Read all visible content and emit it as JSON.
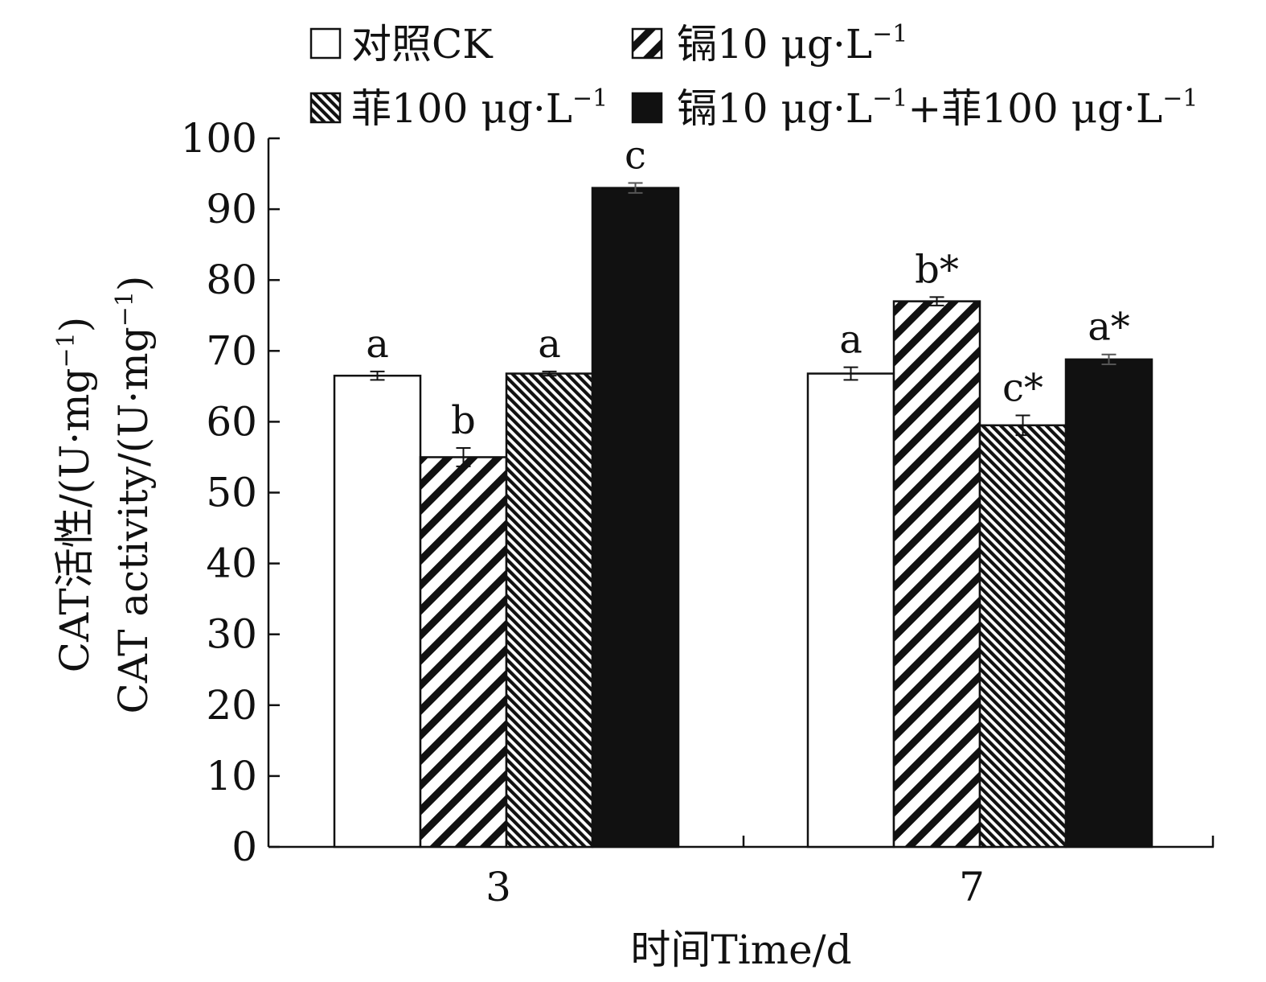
{
  "chart_data": {
    "type": "bar",
    "xlabel": "时间Time/d",
    "ylabel_cn": "CAT活性/(U·mg",
    "ylabel_en": "CAT activity/(U·mg",
    "ylabel_sup": "−1",
    "ylabel_close": ")",
    "ylim": [
      0,
      100
    ],
    "yticks": [
      "0",
      "10",
      "20",
      "30",
      "40",
      "50",
      "60",
      "70",
      "80",
      "90",
      "100"
    ],
    "categories": [
      "3",
      "7"
    ],
    "grid": false,
    "legend_placement": "top",
    "series": [
      {
        "name_main": "对照CK",
        "name_sup": "",
        "pattern": "white",
        "values": [
          66.5,
          66.8
        ],
        "errors": [
          0.6,
          0.9
        ],
        "labels": [
          "a",
          "a"
        ]
      },
      {
        "name_main": "镉10 μg·L",
        "name_sup": "−1",
        "pattern": "diag-wide",
        "values": [
          55.0,
          77.0
        ],
        "errors": [
          1.3,
          0.6
        ],
        "labels": [
          "b",
          "b*"
        ]
      },
      {
        "name_main": "菲100 μg·L",
        "name_sup": "−1",
        "pattern": "diag-dense",
        "values": [
          66.8,
          59.5
        ],
        "errors": [
          0.3,
          1.4
        ],
        "labels": [
          "a",
          "c*"
        ]
      },
      {
        "name_main": "镉10 μg·L",
        "name_sup": "−1",
        "name_mid": "+菲100 μg·L",
        "name_sup2": "−1",
        "pattern": "black",
        "values": [
          93.0,
          68.8
        ],
        "errors": [
          0.7,
          0.7
        ],
        "labels": [
          "c",
          "a*"
        ]
      }
    ],
    "colors": {
      "axis": "#111111",
      "black_fill": "#111111",
      "white_fill": "#ffffff"
    }
  }
}
